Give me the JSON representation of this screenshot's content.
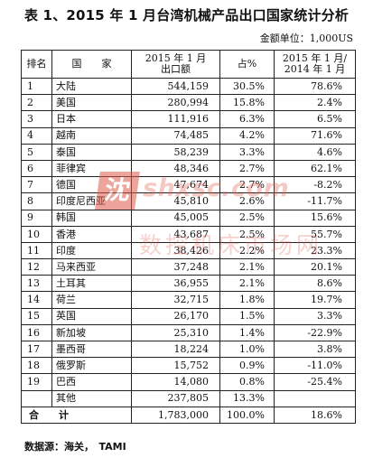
{
  "title": "表 1、2015 年 1 月台湾机械产品出口国家统计分析",
  "unit_note": "金额单位：1,000US",
  "headers": {
    "rank": "排名",
    "country": "国　　家",
    "amount_line1": "2015 年 1 月",
    "amount_line2": "出口额",
    "share": "占%",
    "growth_line1": "2015 年 1 月/",
    "growth_line2": "2014 年 1 月"
  },
  "rows": [
    {
      "rank": "1",
      "country": "大陆",
      "amount": "544,159",
      "share": "30.5%",
      "growth": "78.6%"
    },
    {
      "rank": "2",
      "country": "美国",
      "amount": "280,994",
      "share": "15.8%",
      "growth": "2.4%"
    },
    {
      "rank": "3",
      "country": "日本",
      "amount": "111,916",
      "share": "6.3%",
      "growth": "6.5%"
    },
    {
      "rank": "4",
      "country": "越南",
      "amount": "74,485",
      "share": "4.2%",
      "growth": "71.6%"
    },
    {
      "rank": "5",
      "country": "泰国",
      "amount": "58,239",
      "share": "3.3%",
      "growth": "4.6%"
    },
    {
      "rank": "6",
      "country": "菲律宾",
      "amount": "48,346",
      "share": "2.7%",
      "growth": "62.1%"
    },
    {
      "rank": "7",
      "country": "德国",
      "amount": "47,674",
      "share": "2.7%",
      "growth": "-8.2%"
    },
    {
      "rank": "8",
      "country": "印度尼西亚",
      "amount": "45,810",
      "share": "2.6%",
      "growth": "-11.7%"
    },
    {
      "rank": "9",
      "country": "韩国",
      "amount": "45,005",
      "share": "2.5%",
      "growth": "15.6%"
    },
    {
      "rank": "10",
      "country": "香港",
      "amount": "43,687",
      "share": "2.5%",
      "growth": "55.7%"
    },
    {
      "rank": "11",
      "country": "印度",
      "amount": "38,426",
      "share": "2.2%",
      "growth": "23.3%"
    },
    {
      "rank": "12",
      "country": "马来西亚",
      "amount": "37,248",
      "share": "2.1%",
      "growth": "20.1%"
    },
    {
      "rank": "13",
      "country": "土耳其",
      "amount": "36,955",
      "share": "2.1%",
      "growth": "8.6%"
    },
    {
      "rank": "14",
      "country": "荷兰",
      "amount": "32,715",
      "share": "1.8%",
      "growth": "19.7%"
    },
    {
      "rank": "15",
      "country": "英国",
      "amount": "26,170",
      "share": "1.5%",
      "growth": "3.3%"
    },
    {
      "rank": "16",
      "country": "新加坡",
      "amount": "25,310",
      "share": "1.4%",
      "growth": "-22.9%"
    },
    {
      "rank": "17",
      "country": "墨西哥",
      "amount": "18,224",
      "share": "1.0%",
      "growth": "3.8%"
    },
    {
      "rank": "18",
      "country": "俄罗斯",
      "amount": "15,752",
      "share": "0.9%",
      "growth": "-11.0%"
    },
    {
      "rank": "19",
      "country": "巴西",
      "amount": "14,080",
      "share": "0.8%",
      "growth": "-25.4%"
    },
    {
      "rank": "",
      "country": "其他",
      "amount": "237,805",
      "share": "13.3%",
      "growth": ""
    }
  ],
  "total": {
    "label": "合　　计",
    "amount": "1,783,000",
    "share": "100.0%",
    "growth": "18.6%"
  },
  "source": "数据源：海关，　TAMI",
  "watermark": {
    "logo": "沈",
    "url": "shxsc.com",
    "cn_text": "数控机床市场网",
    "color": "#e05a4a"
  }
}
